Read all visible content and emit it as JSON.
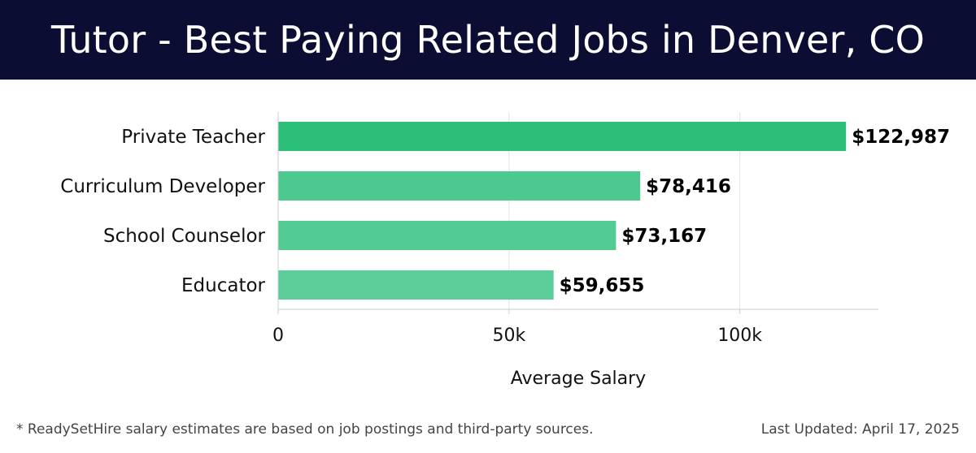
{
  "header": {
    "title": "Tutor - Best Paying Related Jobs in Denver, CO"
  },
  "chart_data": {
    "type": "bar",
    "orientation": "horizontal",
    "categories": [
      "Private Teacher",
      "Curriculum Developer",
      "School Counselor",
      "Educator"
    ],
    "values": [
      122987,
      78416,
      73167,
      59655
    ],
    "value_labels": [
      "$122,987",
      "$78,416",
      "$73,167",
      "$59,655"
    ],
    "xlabel": "Average Salary",
    "ylabel": "",
    "xlim": [
      0,
      130000
    ],
    "xticks": [
      0,
      50000,
      100000
    ],
    "xtick_labels": [
      "0",
      "50k",
      "100k"
    ],
    "grid": "vertical",
    "colors": [
      "#2bbf7a",
      "#4cc98f",
      "#52cb92",
      "#5acd98"
    ]
  },
  "footer": {
    "note": "* ReadySetHire salary estimates are based on job postings and third-party sources.",
    "updated": "Last Updated: April 17, 2025"
  }
}
